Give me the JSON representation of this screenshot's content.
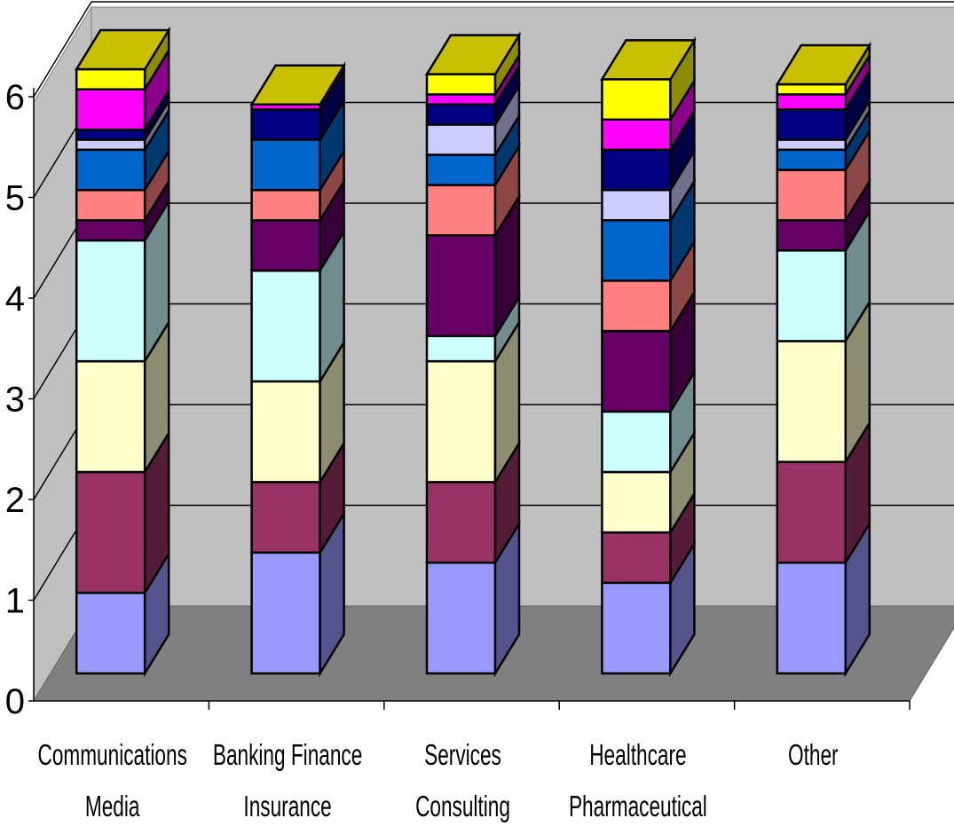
{
  "chart_data": {
    "type": "bar",
    "stacked": true,
    "three_d": true,
    "title": "",
    "xlabel": "",
    "ylabel": "",
    "ylim": [
      0,
      6
    ],
    "y_ticks": [
      "0",
      "1",
      "2",
      "3",
      "4",
      "5",
      "6"
    ],
    "grid": true,
    "legend": "none",
    "categories": [
      [
        "Communications",
        "Media"
      ],
      [
        "Banking Finance",
        "Insurance"
      ],
      [
        "Services",
        "Consulting"
      ],
      [
        "Healthcare",
        "Pharmaceutical"
      ],
      [
        "Other"
      ]
    ],
    "series": [
      {
        "color": "#9999ff",
        "values": [
          0.8,
          1.2,
          1.1,
          0.9,
          1.1
        ]
      },
      {
        "color": "#993366",
        "values": [
          1.2,
          0.7,
          0.8,
          0.5,
          1.0
        ]
      },
      {
        "color": "#ffffcc",
        "values": [
          1.1,
          1.0,
          1.2,
          0.6,
          1.2
        ]
      },
      {
        "color": "#ccffff",
        "values": [
          1.2,
          1.1,
          0.25,
          0.6,
          0.9
        ]
      },
      {
        "color": "#660066",
        "values": [
          0.2,
          0.5,
          1.0,
          0.8,
          0.3
        ]
      },
      {
        "color": "#ff8080",
        "values": [
          0.3,
          0.3,
          0.5,
          0.5,
          0.5
        ]
      },
      {
        "color": "#0066cc",
        "values": [
          0.4,
          0.5,
          0.3,
          0.6,
          0.2
        ]
      },
      {
        "color": "#ccccff",
        "values": [
          0.1,
          0.0,
          0.3,
          0.3,
          0.1
        ]
      },
      {
        "color": "#000080",
        "values": [
          0.1,
          0.3,
          0.2,
          0.4,
          0.3
        ]
      },
      {
        "color": "#ff00ff",
        "values": [
          0.4,
          0.05,
          0.1,
          0.3,
          0.15
        ]
      },
      {
        "color": "#ffff00",
        "values": [
          0.2,
          0.0,
          0.2,
          0.4,
          0.1
        ]
      }
    ]
  },
  "colors": {
    "back_wall": "#c0c0c0",
    "floor": "#808080",
    "top_face": "#c8c000"
  }
}
